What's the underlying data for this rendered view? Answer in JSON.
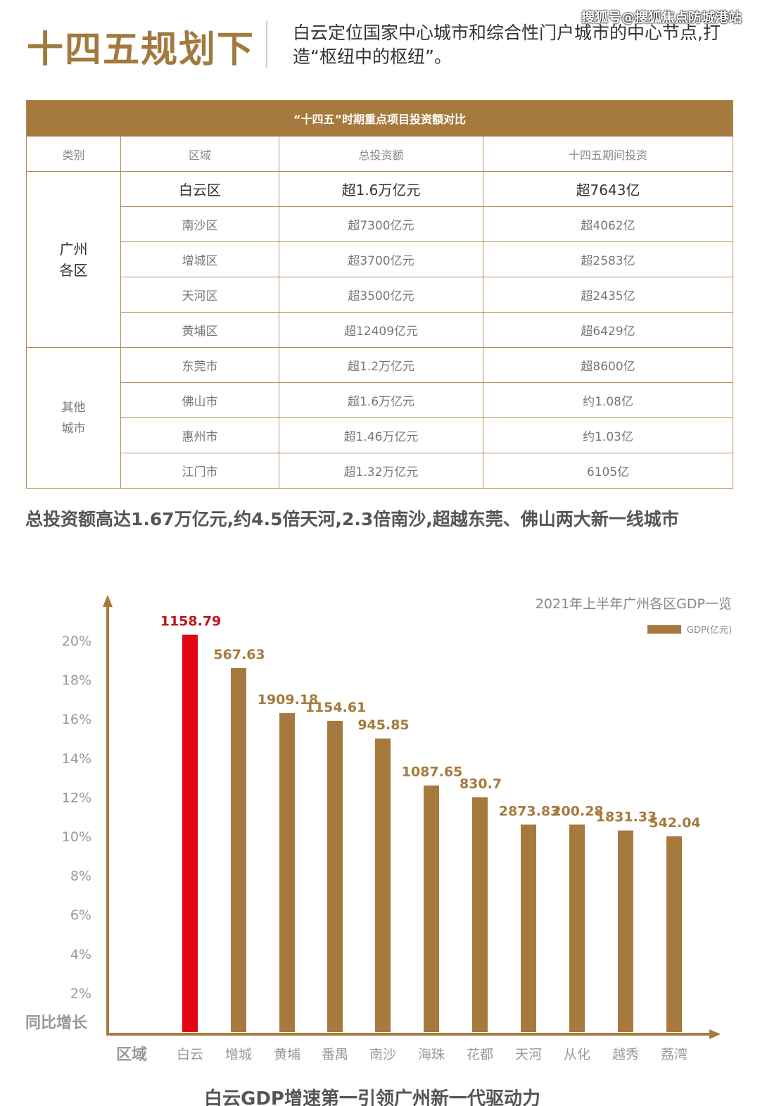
{
  "header": {
    "title": "十四五规划下",
    "subtitle": "白云定位国家中心城市和综合性门户城市的中心节点,打造“枢纽中的枢纽”。",
    "watermark": "搜狐号@搜狐焦点防城港站"
  },
  "table": {
    "caption": "“十四五”时期重点项目投资额对比",
    "columns": [
      "类别",
      "区域",
      "总投资额",
      "十四五期间投资"
    ],
    "groups": [
      {
        "category": "广州\n各区",
        "rows": [
          [
            "白云区",
            "超1.6万亿元",
            "超7643亿"
          ],
          [
            "南沙区",
            "超7300亿元",
            "超4062亿"
          ],
          [
            "增城区",
            "超3700亿元",
            "超2583亿"
          ],
          [
            "天河区",
            "超3500亿元",
            "超2435亿"
          ],
          [
            "黄埔区",
            "超12409亿元",
            "超6429亿"
          ]
        ]
      },
      {
        "category": "其他\n城市",
        "rows": [
          [
            "东莞市",
            "超1.2万亿元",
            "超8600亿"
          ],
          [
            "佛山市",
            "超1.6万亿元",
            "约1.08亿"
          ],
          [
            "惠州市",
            "超1.46万亿元",
            "约1.03亿"
          ],
          [
            "江门市",
            "超1.32万亿元",
            "6105亿"
          ]
        ]
      }
    ]
  },
  "summary": "总投资额高达1.67万亿元,约4.5倍天河,2.3倍南沙,超越东莞、佛山两大新一线城市",
  "chart_data": {
    "type": "bar",
    "title": "2021年上半年广州各区GDP一览",
    "legend": "GDP(亿元)",
    "legend_position": "top-right",
    "xlabel": "区域",
    "ylabel": "同比增长",
    "categories": [
      "白云",
      "增城",
      "黄埔",
      "番禺",
      "南沙",
      "海珠",
      "花都",
      "天河",
      "从化",
      "越秀",
      "荔湾"
    ],
    "growth_pct": [
      20.3,
      18.6,
      16.3,
      15.9,
      15.0,
      12.6,
      12.0,
      10.6,
      10.6,
      10.3,
      10.0
    ],
    "gdp_labels": [
      "1158.79",
      "567.63",
      "1909.18",
      "1154.61",
      "945.85",
      "1087.65",
      "830.7",
      "2873.83",
      "200.28",
      "1831.33",
      "542.04"
    ],
    "yticks": [
      "2%",
      "4%",
      "6%",
      "8%",
      "10%",
      "12%",
      "14%",
      "16%",
      "18%",
      "20%"
    ],
    "ylim": [
      0,
      21
    ],
    "colors": {
      "highlight": "#e30613",
      "bar": "#a67a3e",
      "axis": "#a67a3e"
    }
  },
  "bottom_title": "白云GDP增速第一引领广州新一代驱动力"
}
